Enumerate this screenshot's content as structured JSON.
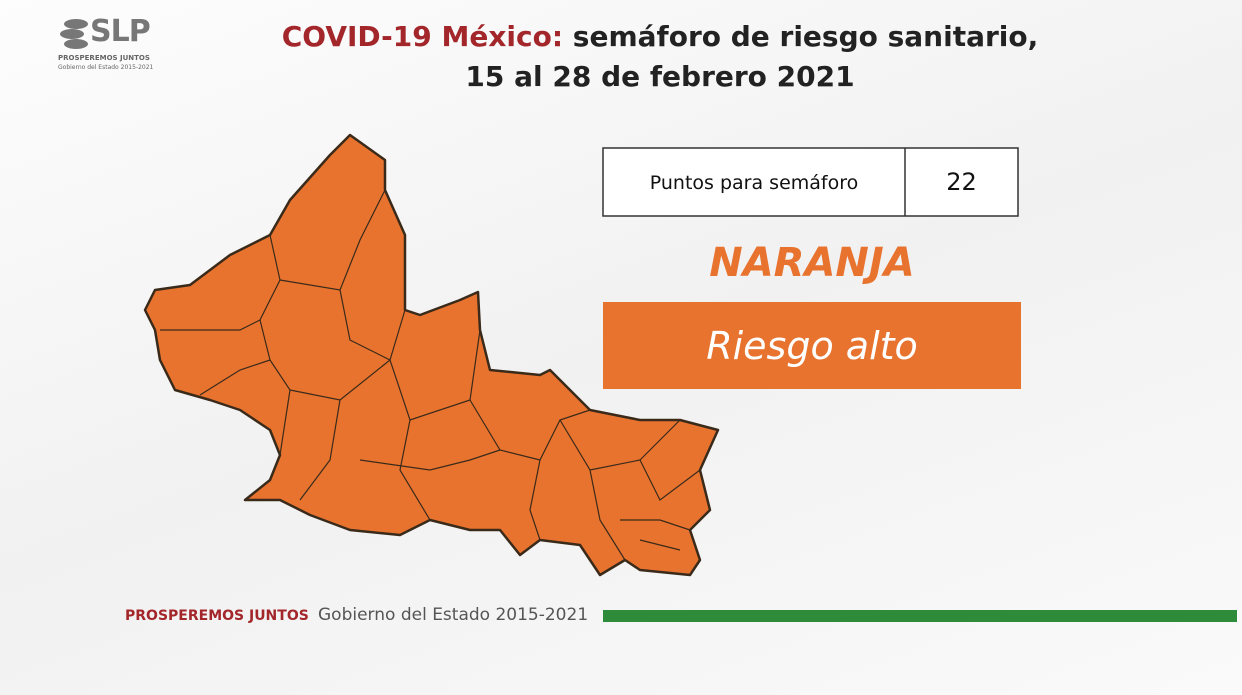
{
  "logo": {
    "mark": "SLP",
    "tagline": "PROSPEREMOS JUNTOS",
    "sub": "Gobierno del Estado 2015-2021"
  },
  "header": {
    "title_highlight": "COVID-19 México:",
    "title_rest": "semáforo de riesgo sanitario,",
    "subtitle": "15 al 28 de febrero 2021"
  },
  "table": {
    "label": "Puntos para semáforo",
    "value": 22
  },
  "status": {
    "color_name": "NARANJA",
    "risk": "Riesgo alto"
  },
  "footer": {
    "tagline": "PROSPEREMOS JUNTOS",
    "government": "Gobierno del Estado 2015-2021"
  }
}
